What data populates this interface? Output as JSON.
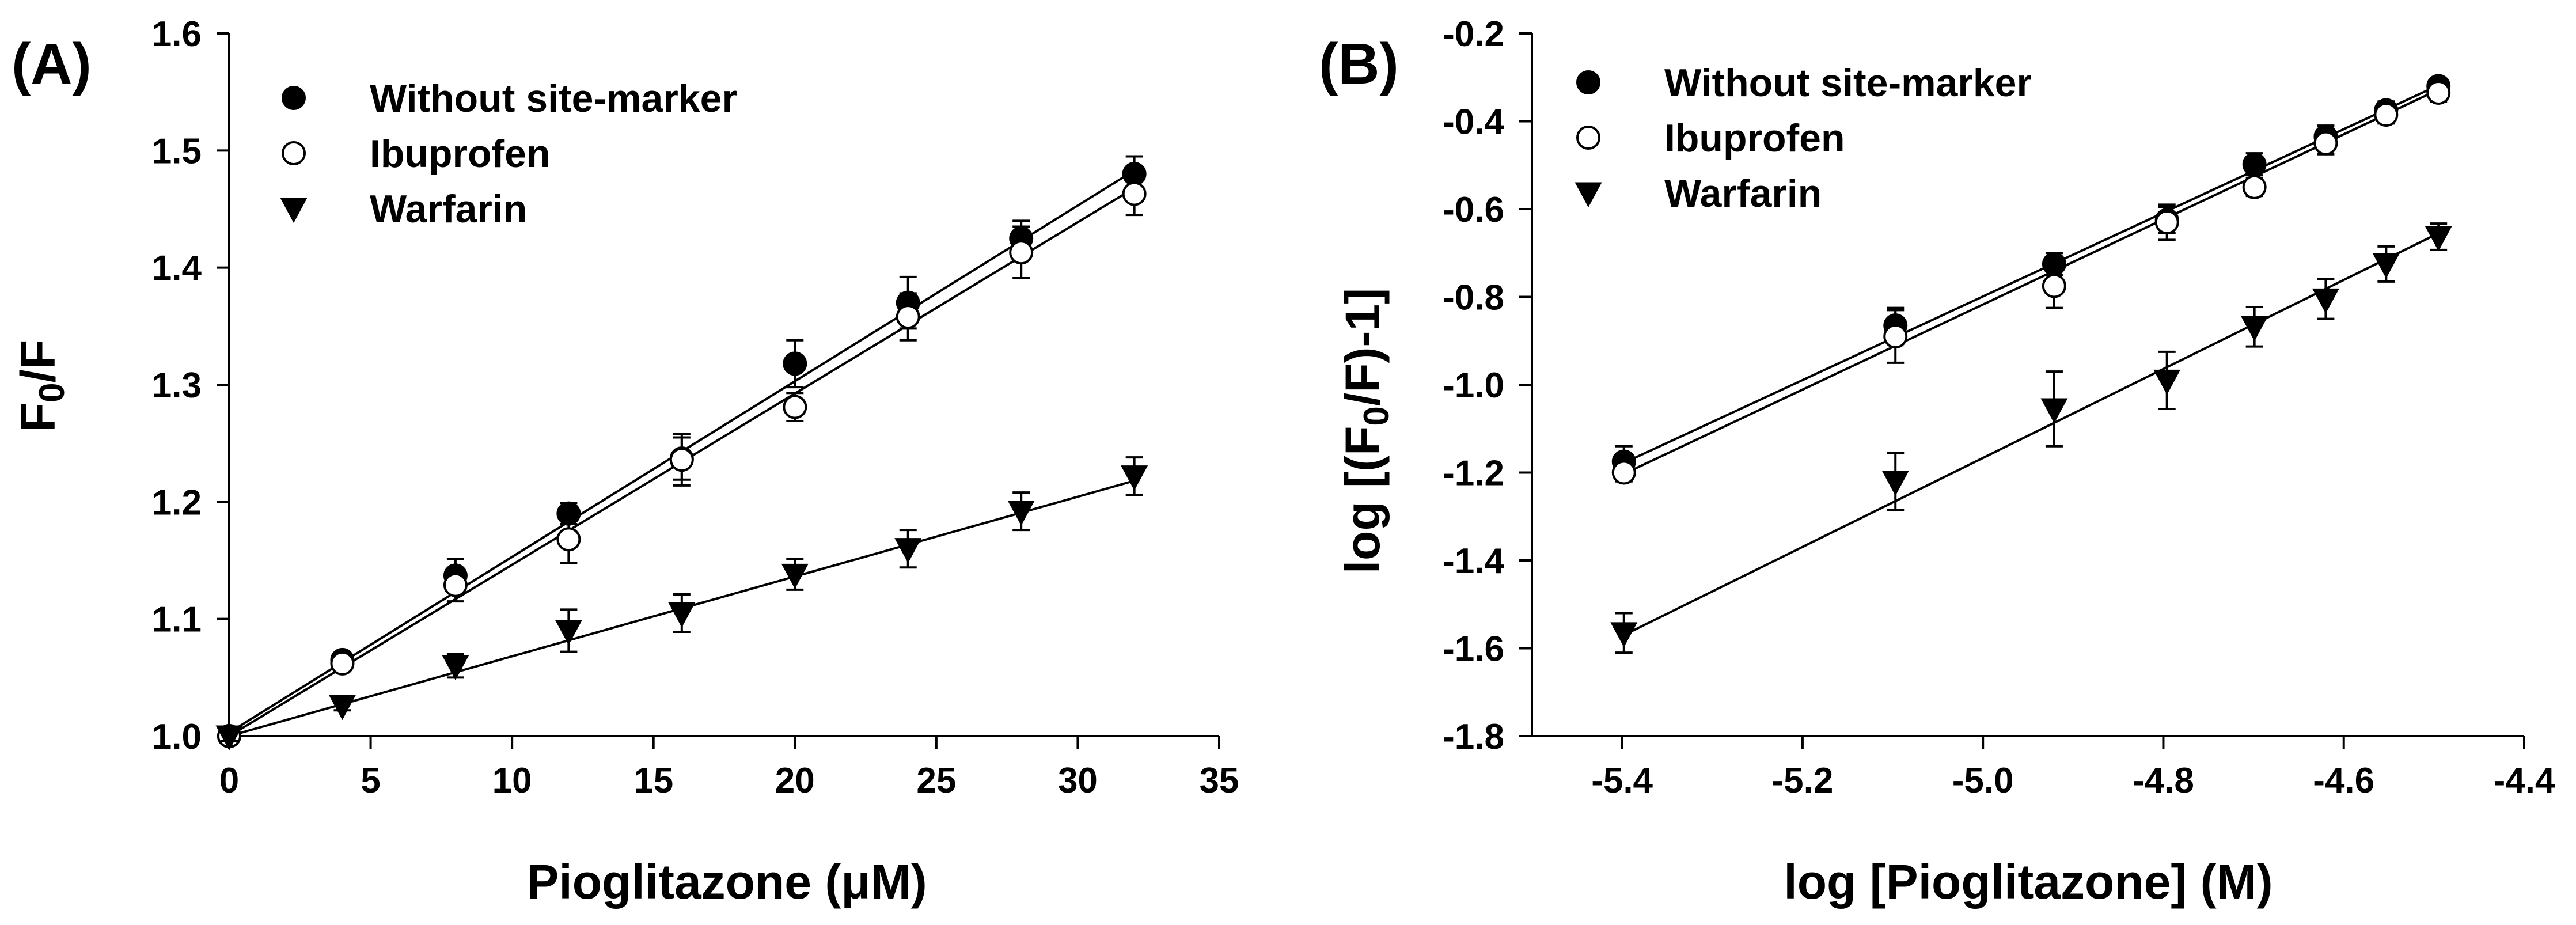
{
  "chart_data": [
    {
      "type": "scatter",
      "panel_label": "(A)",
      "xlabel": "Pioglitazone (μM)",
      "ylabel": "F0/F",
      "xlim": [
        0,
        35
      ],
      "ylim": [
        1.0,
        1.6
      ],
      "xticks": [
        "0",
        "5",
        "10",
        "15",
        "20",
        "25",
        "30",
        "35"
      ],
      "yticks": [
        "1.0",
        "1.1",
        "1.2",
        "1.3",
        "1.4",
        "1.5",
        "1.6"
      ],
      "legend_position": "top-left",
      "grid": false,
      "x": [
        0,
        4,
        8,
        12,
        16,
        20,
        24,
        28,
        32
      ],
      "series": [
        {
          "name": "Without site-marker",
          "marker": "filled-circle",
          "values": [
            1.0,
            1.065,
            1.137,
            1.19,
            1.237,
            1.318,
            1.37,
            1.425,
            1.48
          ],
          "errors": [
            0.004,
            0.006,
            0.014,
            0.009,
            0.018,
            0.02,
            0.022,
            0.015,
            0.015
          ],
          "fit": [
            1.003,
            1.483
          ]
        },
        {
          "name": "Ibuprofen",
          "marker": "open-circle",
          "values": [
            1.0,
            1.062,
            1.129,
            1.168,
            1.236,
            1.281,
            1.358,
            1.413,
            1.463
          ],
          "errors": [
            0.004,
            0.005,
            0.014,
            0.02,
            0.022,
            0.012,
            0.02,
            0.022,
            0.018
          ],
          "fit": [
            1.0,
            1.468
          ]
        },
        {
          "name": "Warfarin",
          "marker": "filled-triangle-down",
          "values": [
            1.0,
            1.026,
            1.06,
            1.09,
            1.105,
            1.138,
            1.16,
            1.192,
            1.222
          ],
          "errors": [
            0.004,
            0.004,
            0.01,
            0.018,
            0.016,
            0.013,
            0.016,
            0.016,
            0.016
          ],
          "fit": [
            1.0,
            1.218
          ]
        }
      ]
    },
    {
      "type": "scatter",
      "panel_label": "(B)",
      "xlabel": "log [Pioglitazone] (M)",
      "ylabel": "log [(F0/F)-1]",
      "xlim": [
        -5.5,
        -4.4
      ],
      "ylim": [
        -1.8,
        -0.2
      ],
      "xticks": [
        "-5.4",
        "-5.2",
        "-5.0",
        "-4.8",
        "-4.6",
        "-4.4"
      ],
      "yticks": [
        "-1.8",
        "-1.6",
        "-1.4",
        "-1.2",
        "-1.0",
        "-0.8",
        "-0.6",
        "-0.4",
        "-0.2"
      ],
      "legend_position": "top-left",
      "grid": false,
      "x": [
        -5.398,
        -5.097,
        -4.921,
        -4.796,
        -4.699,
        -4.62,
        -4.553,
        -4.495
      ],
      "series": [
        {
          "name": "Without site-marker",
          "marker": "filled-circle",
          "values": [
            -1.175,
            -0.865,
            -0.725,
            -0.625,
            -0.498,
            -0.435,
            -0.375,
            -0.32
          ],
          "errors": [
            0.035,
            0.04,
            0.025,
            0.03,
            0.025,
            0.025,
            0.02,
            0.015
          ],
          "fit": [
            -1.178,
            -0.318
          ]
        },
        {
          "name": "Ibuprofen",
          "marker": "open-circle",
          "values": [
            -1.2,
            -0.89,
            -0.775,
            -0.63,
            -0.55,
            -0.45,
            -0.385,
            -0.335
          ],
          "errors": [
            0.02,
            0.06,
            0.05,
            0.04,
            0.02,
            0.025,
            0.02,
            0.02
          ],
          "fit": [
            -1.203,
            -0.328
          ]
        },
        {
          "name": "Warfarin",
          "marker": "filled-triangle-down",
          "values": [
            -1.565,
            -1.22,
            -1.055,
            -0.99,
            -0.868,
            -0.805,
            -0.725,
            -0.663
          ],
          "errors": [
            0.045,
            0.065,
            0.085,
            0.065,
            0.045,
            0.045,
            0.04,
            0.03
          ],
          "fit": [
            -1.57,
            -0.655
          ]
        }
      ]
    }
  ]
}
